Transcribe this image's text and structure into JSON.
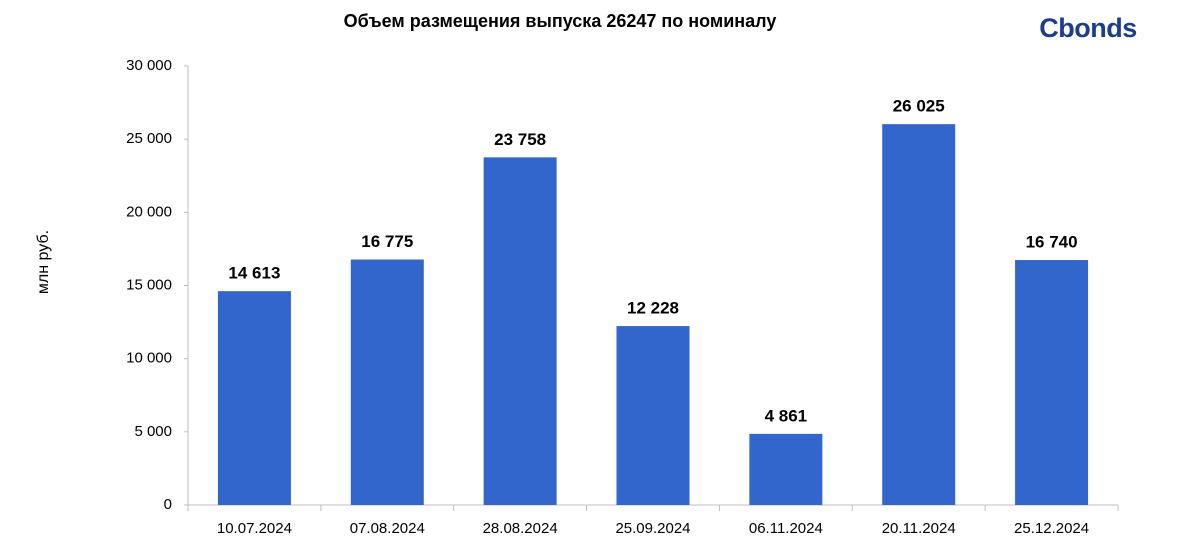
{
  "logo": "Cbonds",
  "chart_data": {
    "type": "bar",
    "title": "Объем размещения выпуска 26247 по номиналу",
    "y_label": "млн руб.",
    "categories": [
      "10.07.2024",
      "07.08.2024",
      "28.08.2024",
      "25.09.2024",
      "06.11.2024",
      "20.11.2024",
      "25.12.2024"
    ],
    "values": [
      14613,
      16775,
      23758,
      12228,
      4861,
      26025,
      16740
    ],
    "value_labels": [
      "14 613",
      "16 775",
      "23 758",
      "12 228",
      "4 861",
      "26 025",
      "16 740"
    ],
    "color": "#3366cc",
    "ylim": [
      0,
      30000
    ],
    "yticks": [
      0,
      {
        "value": 5000,
        "label": "5 000"
      },
      {
        "value": 10000,
        "label": "10 000"
      },
      {
        "value": 15000,
        "label": "15 000"
      },
      {
        "value": 20000,
        "label": "20 000"
      },
      {
        "value": 25000,
        "label": "25 000"
      },
      {
        "value": 30000,
        "label": "30 000"
      }
    ],
    "grid": false
  }
}
